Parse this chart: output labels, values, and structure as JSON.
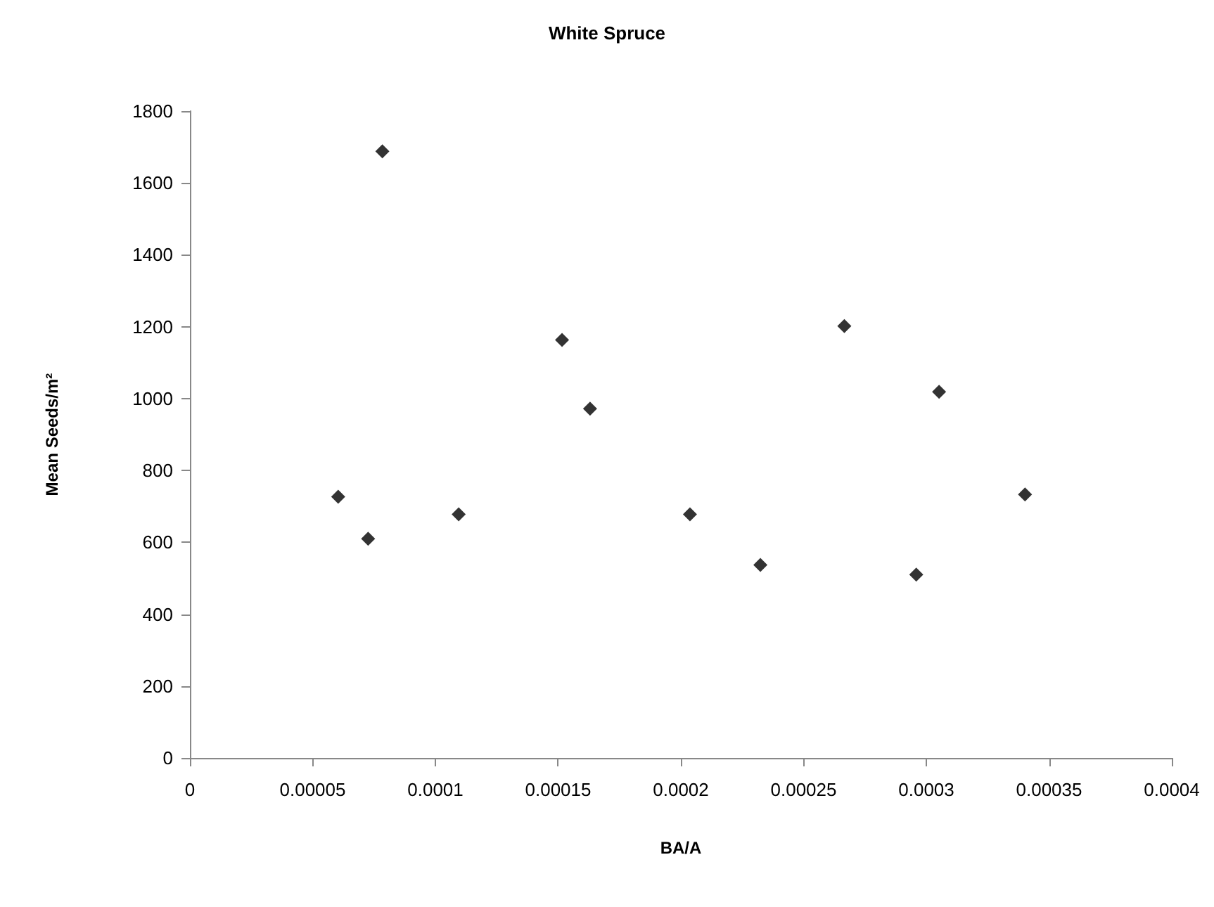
{
  "chart_data": {
    "type": "scatter",
    "title": "White Spruce",
    "xlabel": "BA/A",
    "ylabel": "Mean Seeds/m²",
    "x": [
      6.04e-05,
      7.26e-05,
      7.84e-05,
      0.0001095,
      0.0001516,
      0.000163,
      0.0002037,
      0.0002324,
      0.0002666,
      0.0002959,
      0.0003052,
      0.0003402
    ],
    "series": [
      {
        "color": "#000000",
        "values": [
          727,
          610,
          1688,
          678,
          1163,
          972,
          678,
          537,
          1202,
          510,
          1019,
          733
        ]
      }
    ],
    "xlim": [
      0,
      0.0004
    ],
    "xticks": [
      0,
      {
        "value": 5e-05,
        "label": "0.00005"
      },
      0.0001,
      0.00015,
      0.0002,
      0.00025,
      0.0003,
      0.00035,
      0.0004
    ],
    "ylim": [
      0,
      1800
    ],
    "yticks": [
      0,
      200,
      400,
      600,
      800,
      1000,
      1200,
      1400,
      1600,
      1800
    ],
    "grid": false,
    "marker": "diamond"
  }
}
